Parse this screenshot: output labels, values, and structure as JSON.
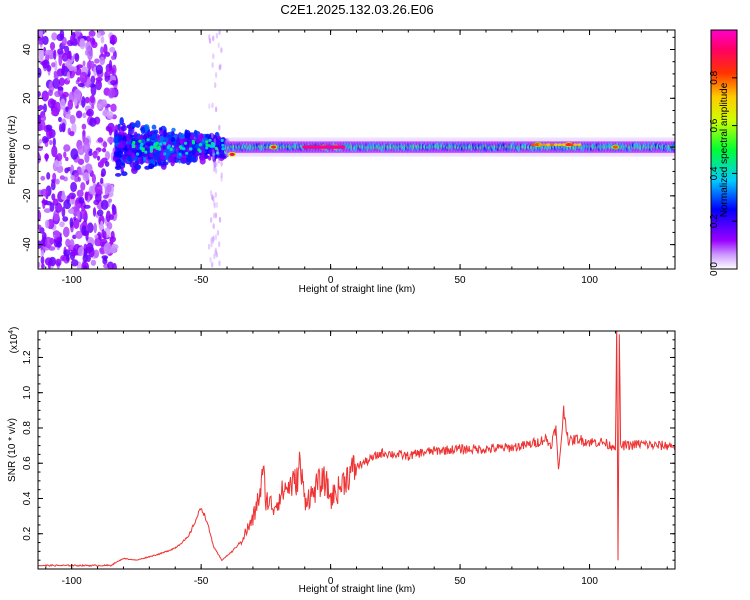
{
  "title": "C2E1.2025.132.03.26.E06",
  "colors": {
    "snr_line": "#ee3333",
    "axis": "#000000",
    "background": "#ffffff"
  },
  "chart_data": [
    {
      "type": "heatmap",
      "name": "spectrogram",
      "xlabel": "Height of straight line (km)",
      "ylabel": "Frequency (Hz)",
      "xlim": [
        -113,
        133
      ],
      "ylim": [
        -50,
        48
      ],
      "x_ticks": [
        -100,
        -50,
        0,
        50,
        100
      ],
      "y_ticks": [
        -40,
        -20,
        0,
        20,
        40
      ],
      "grid": false,
      "colorbar": {
        "label": "Normalized spectral amplitude",
        "range": [
          0,
          1
        ],
        "ticks": [
          0.0,
          0.2,
          0.4,
          0.6,
          0.8
        ],
        "tick_labels": [
          "0.0",
          "0.2",
          "0.4",
          "0.6",
          "0.8"
        ],
        "colormap": [
          "#ffffff",
          "#9900ff",
          "#0000ff",
          "#00ccff",
          "#00ff00",
          "#ffff00",
          "#ff6600",
          "#ff0033",
          "#ff00cc"
        ]
      },
      "regions": [
        {
          "x_range": [
            -113,
            -83
          ],
          "freq_range": [
            -50,
            48
          ],
          "amplitude": 0.1,
          "description_level": "scattered"
        },
        {
          "x_range": [
            -83,
            -40
          ],
          "freq_range": [
            -12,
            12
          ],
          "amplitude": 0.25
        },
        {
          "x_range": [
            -47,
            -42
          ],
          "freq_range": [
            -50,
            48
          ],
          "amplitude": 0.05
        },
        {
          "x_range": [
            -40,
            133
          ],
          "freq_range": [
            -3,
            3
          ],
          "amplitude": 0.5
        }
      ],
      "peaks": [
        {
          "x": -38,
          "freq": -3,
          "amplitude": 0.9
        },
        {
          "x": -22,
          "freq": 0,
          "amplitude": 0.85
        },
        {
          "x": -3,
          "freq": 0,
          "amplitude": 1.0
        },
        {
          "x": 2,
          "freq": 0,
          "amplitude": 1.0
        },
        {
          "x": 80,
          "freq": 1,
          "amplitude": 0.8
        },
        {
          "x": 92,
          "freq": 1,
          "amplitude": 0.9
        },
        {
          "x": 110,
          "freq": 0,
          "amplitude": 0.8
        }
      ]
    },
    {
      "type": "line",
      "name": "snr",
      "xlabel": "Height of straight line (km)",
      "ylabel": "SNR (10 * v/v)",
      "y_exponent": "(x10",
      "y_exponent_power": "4",
      "y_exponent_close": ")",
      "xlim": [
        -113,
        133
      ],
      "ylim": [
        0.0,
        1.35
      ],
      "x_ticks": [
        -100,
        -50,
        0,
        50,
        100
      ],
      "y_ticks": [
        0.2,
        0.4,
        0.6,
        0.8,
        1.0,
        1.2
      ],
      "grid": false,
      "series": [
        {
          "x": [
            -113,
            -100,
            -85,
            -80,
            -75,
            -70,
            -65,
            -60,
            -55,
            -52,
            -50,
            -48,
            -45,
            -42,
            -38,
            -35,
            -30,
            -27,
            -26,
            -25,
            -22,
            -18,
            -15,
            -13,
            -12,
            -10,
            -7,
            -5,
            -2,
            0,
            3,
            6,
            10,
            15,
            20,
            25,
            30,
            35,
            40,
            50,
            60,
            70,
            75,
            80,
            83,
            85,
            87,
            88,
            90,
            92,
            95,
            100,
            105,
            108,
            110,
            110.5,
            111,
            111.5,
            112,
            115,
            120,
            125,
            133
          ],
          "y": [
            0.02,
            0.02,
            0.02,
            0.06,
            0.05,
            0.07,
            0.09,
            0.12,
            0.18,
            0.28,
            0.35,
            0.28,
            0.12,
            0.05,
            0.1,
            0.15,
            0.28,
            0.45,
            0.55,
            0.4,
            0.35,
            0.45,
            0.48,
            0.5,
            0.6,
            0.4,
            0.42,
            0.48,
            0.5,
            0.4,
            0.45,
            0.52,
            0.58,
            0.62,
            0.66,
            0.65,
            0.64,
            0.66,
            0.67,
            0.68,
            0.68,
            0.69,
            0.7,
            0.72,
            0.74,
            0.7,
            0.8,
            0.55,
            0.9,
            0.72,
            0.74,
            0.72,
            0.72,
            0.7,
            0.7,
            1.35,
            0.05,
            1.3,
            0.7,
            0.7,
            0.71,
            0.7,
            0.7
          ]
        }
      ]
    }
  ]
}
